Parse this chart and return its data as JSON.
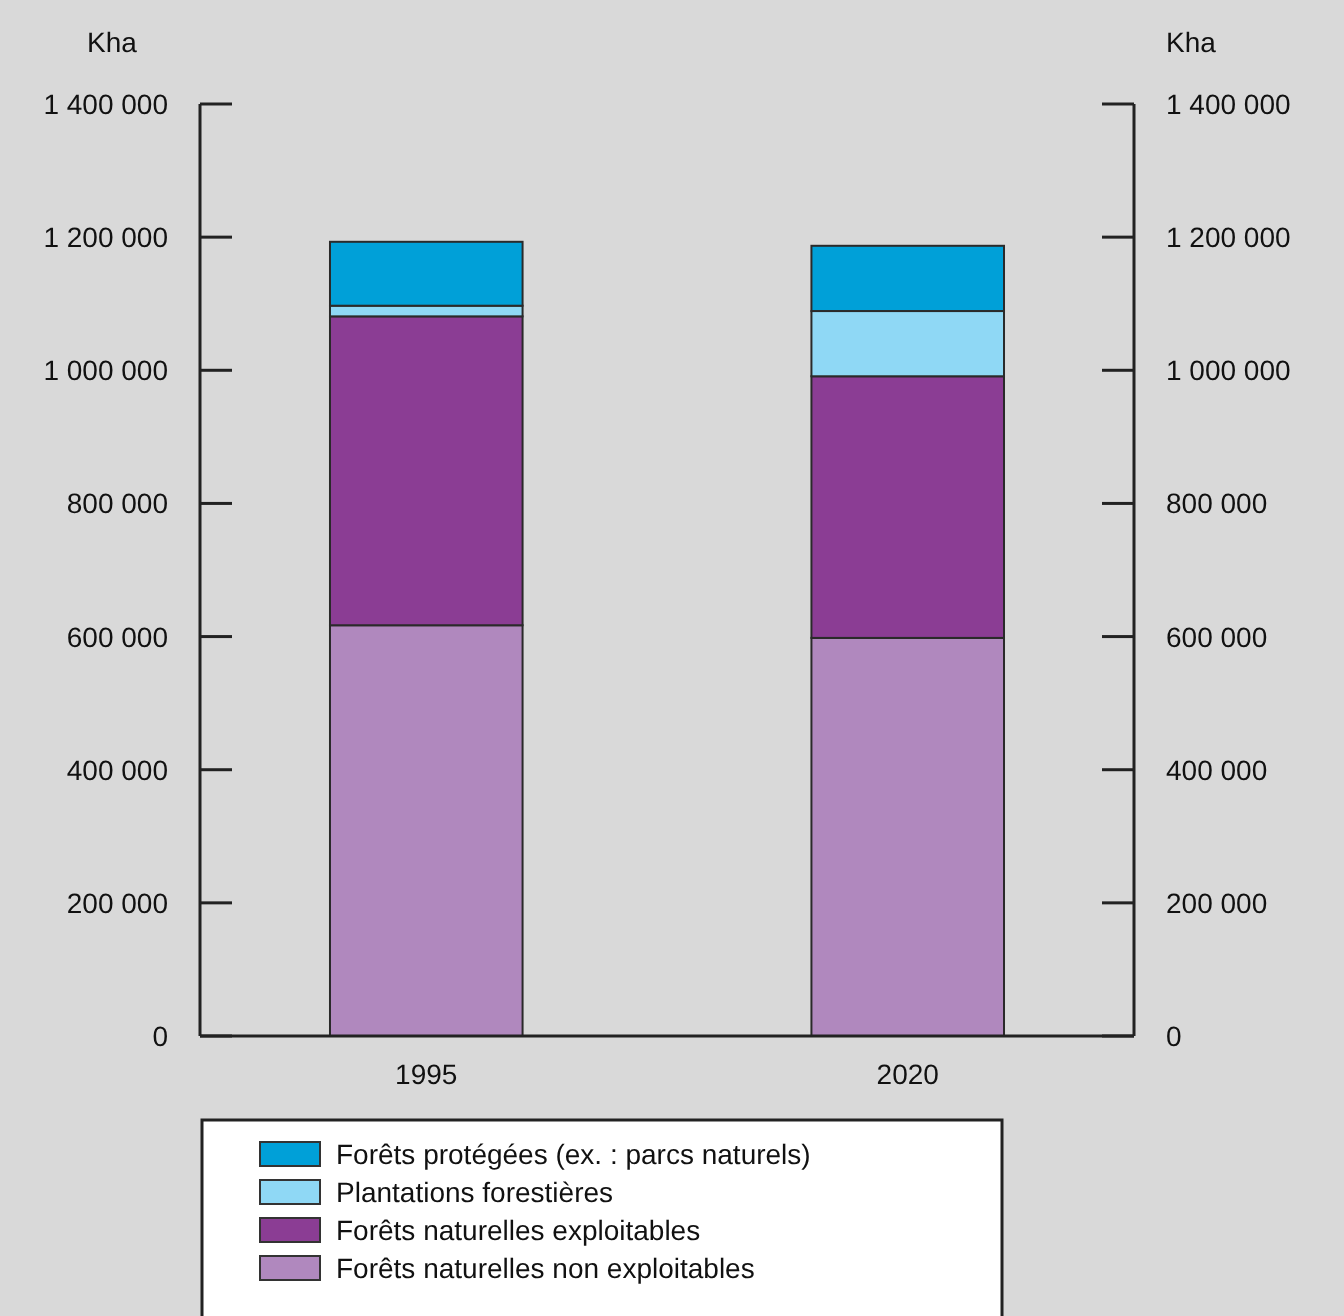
{
  "chart_data": {
    "type": "bar",
    "stacked": true,
    "ylabel": "Kha",
    "y2label": "Kha",
    "categories": [
      "1995",
      "2020"
    ],
    "series": [
      {
        "name": "Forêts naturelles non exploitables",
        "color": "#b088be",
        "values": [
          617000,
          598000
        ]
      },
      {
        "name": "Forêts naturelles exploitables",
        "color": "#8b3d94",
        "values": [
          464000,
          393000
        ]
      },
      {
        "name": "Plantations forestières",
        "color": "#8fd8f5",
        "values": [
          16000,
          98000
        ]
      },
      {
        "name": "Forêts protégées (ex. : parcs naturels)",
        "color": "#00a0d8",
        "values": [
          96000,
          98000
        ]
      }
    ],
    "ylim": [
      0,
      1400000
    ],
    "yticks": [
      0,
      {
        "value": 200000,
        "label": "200 000"
      },
      {
        "value": 400000,
        "label": "400 000"
      },
      {
        "value": 600000,
        "label": "600 000"
      },
      {
        "value": 800000,
        "label": "800 000"
      },
      {
        "value": 1000000,
        "label": "1 000 000"
      },
      {
        "value": 1200000,
        "label": "1 200 000"
      },
      {
        "value": 1400000,
        "label": "1 400 000"
      }
    ],
    "y2lim": [
      0,
      1400000
    ],
    "y2ticks": [
      0,
      {
        "value": 200000,
        "label": "200 000"
      },
      {
        "value": 400000,
        "label": "400 000"
      },
      {
        "value": 600000,
        "label": "600 000"
      },
      {
        "value": 800000,
        "label": "800 000"
      },
      {
        "value": 1000000,
        "label": "1 000 000"
      },
      {
        "value": 1200000,
        "label": "1 200 000"
      },
      {
        "value": 1400000,
        "label": "1 400 000"
      }
    ],
    "legend": "bottom",
    "grid": false
  }
}
